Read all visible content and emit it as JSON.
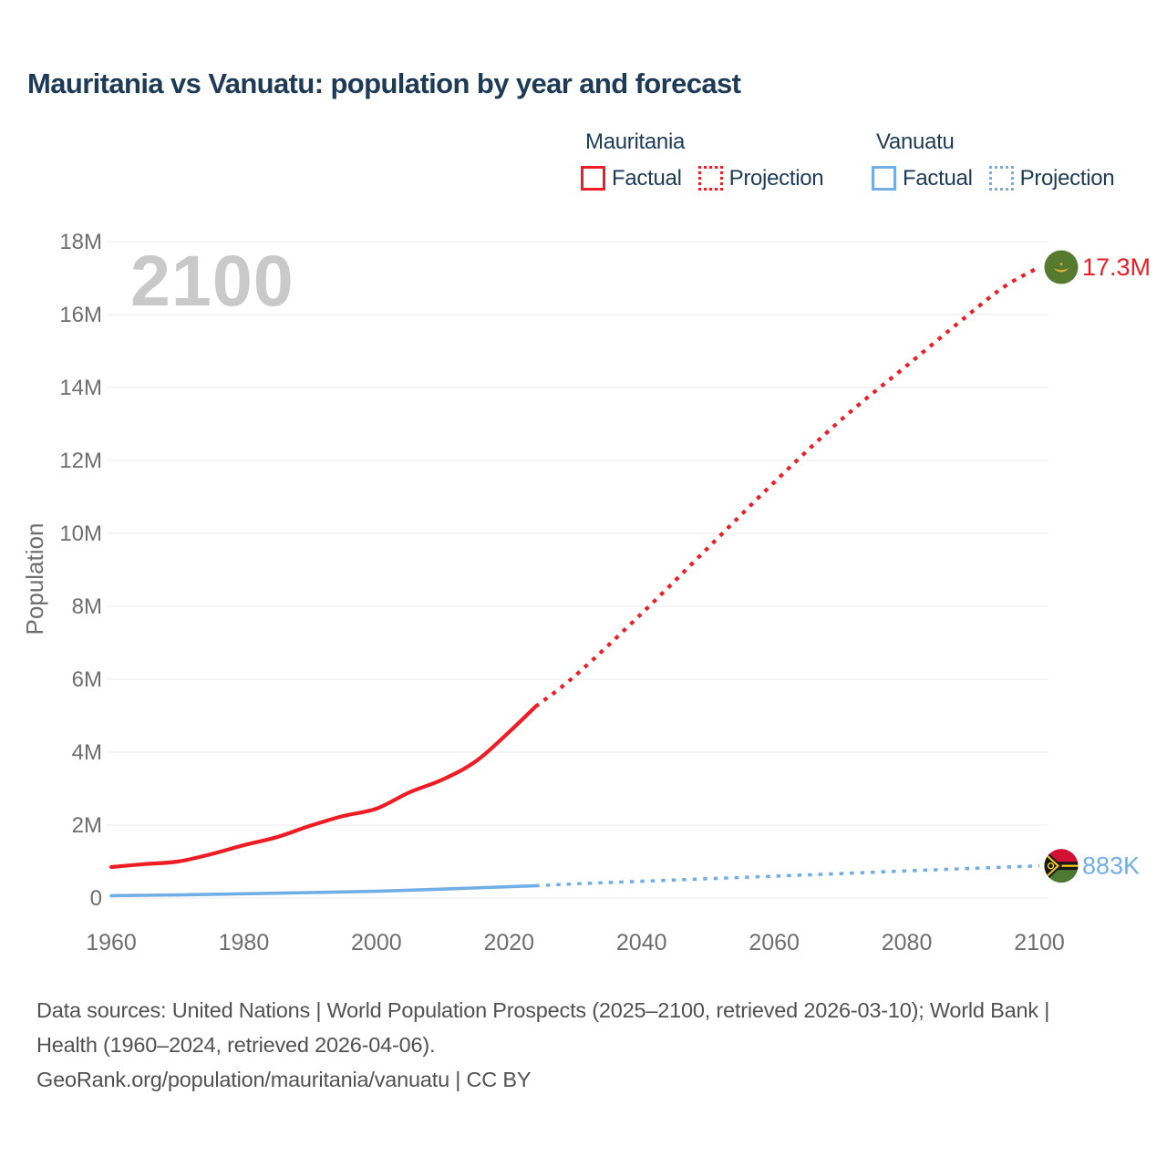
{
  "title": "Mauritania vs Vanuatu: population by year and forecast",
  "watermark": "2100",
  "legend": {
    "mauritania": {
      "name": "Mauritania",
      "factual": "Factual",
      "projection": "Projection"
    },
    "vanuatu": {
      "name": "Vanuatu",
      "factual": "Factual",
      "projection": "Projection"
    }
  },
  "colors": {
    "mauritania": "#ef1c24",
    "vanuatu": "#72aee6",
    "title_text": "#1d3a57",
    "tick_text": "#6e6e6e",
    "gridline": "#efefef",
    "watermark": "#c9c9c9",
    "footer_text": "#515151",
    "mauritania_flag_green": "#567a2e",
    "mauritania_flag_gold": "#e8b434",
    "vanuatu_flag_red": "#d21034",
    "vanuatu_flag_green": "#4c7a34",
    "vanuatu_flag_black": "#1a1a1a",
    "vanuatu_flag_yellow": "#fdce12"
  },
  "chart_data": {
    "type": "line",
    "title": "Mauritania vs Vanuatu: population by year and forecast",
    "xlabel": "",
    "ylabel": "Population",
    "xlim": [
      1960,
      2100
    ],
    "ylim": [
      0,
      18000000
    ],
    "grid": "horizontal",
    "legend_position": "top-right",
    "x_ticks": [
      1960,
      1980,
      2000,
      2020,
      2040,
      2060,
      2080,
      2100
    ],
    "y_ticks": [
      {
        "value": 0,
        "label": "0"
      },
      {
        "value": 2000000,
        "label": "2M"
      },
      {
        "value": 4000000,
        "label": "4M"
      },
      {
        "value": 6000000,
        "label": "6M"
      },
      {
        "value": 8000000,
        "label": "8M"
      },
      {
        "value": 10000000,
        "label": "10M"
      },
      {
        "value": 12000000,
        "label": "12M"
      },
      {
        "value": 14000000,
        "label": "14M"
      },
      {
        "value": 16000000,
        "label": "16M"
      },
      {
        "value": 18000000,
        "label": "18M"
      }
    ],
    "series": [
      {
        "name": "Mauritania Factual",
        "country": "Mauritania",
        "kind": "factual",
        "style": "solid",
        "color": "#ef1c24",
        "points": [
          [
            1960,
            850000
          ],
          [
            1965,
            930000
          ],
          [
            1970,
            1000000
          ],
          [
            1975,
            1200000
          ],
          [
            1980,
            1450000
          ],
          [
            1985,
            1670000
          ],
          [
            1990,
            1980000
          ],
          [
            1995,
            2250000
          ],
          [
            2000,
            2450000
          ],
          [
            2005,
            2900000
          ],
          [
            2010,
            3250000
          ],
          [
            2015,
            3750000
          ],
          [
            2020,
            4550000
          ],
          [
            2024,
            5250000
          ]
        ]
      },
      {
        "name": "Mauritania Projection",
        "country": "Mauritania",
        "kind": "projection",
        "style": "dotted",
        "color": "#ef1c24",
        "points": [
          [
            2024,
            5250000
          ],
          [
            2030,
            6100000
          ],
          [
            2040,
            7800000
          ],
          [
            2050,
            9600000
          ],
          [
            2060,
            11400000
          ],
          [
            2070,
            13100000
          ],
          [
            2080,
            14600000
          ],
          [
            2090,
            16100000
          ],
          [
            2095,
            16800000
          ],
          [
            2100,
            17300000
          ]
        ]
      },
      {
        "name": "Vanuatu Factual",
        "country": "Vanuatu",
        "kind": "factual",
        "style": "solid",
        "color": "#72aee6",
        "points": [
          [
            1960,
            65000
          ],
          [
            1970,
            87000
          ],
          [
            1980,
            117000
          ],
          [
            1990,
            150000
          ],
          [
            2000,
            185000
          ],
          [
            2010,
            245000
          ],
          [
            2020,
            312000
          ],
          [
            2024,
            335000
          ]
        ]
      },
      {
        "name": "Vanuatu Projection",
        "country": "Vanuatu",
        "kind": "projection",
        "style": "dotted",
        "color": "#72aee6",
        "points": [
          [
            2024,
            335000
          ],
          [
            2030,
            390000
          ],
          [
            2040,
            460000
          ],
          [
            2050,
            530000
          ],
          [
            2060,
            600000
          ],
          [
            2070,
            670000
          ],
          [
            2080,
            745000
          ],
          [
            2090,
            815000
          ],
          [
            2100,
            883000
          ]
        ]
      }
    ],
    "end_labels": [
      {
        "series": "Mauritania Projection",
        "text": "17.3M",
        "color": "#ef1c24",
        "flag": "mauritania"
      },
      {
        "series": "Vanuatu Projection",
        "text": "883K",
        "color": "#72aee6",
        "flag": "vanuatu"
      }
    ]
  },
  "footer": {
    "sources": "Data sources: United Nations | World Population Prospects (2025–2100, retrieved 2026-03-10); World Bank | Health (1960–2024, retrieved 2026-04-06).",
    "attribution": "GeoRank.org/population/mauritania/vanuatu | CC BY"
  }
}
